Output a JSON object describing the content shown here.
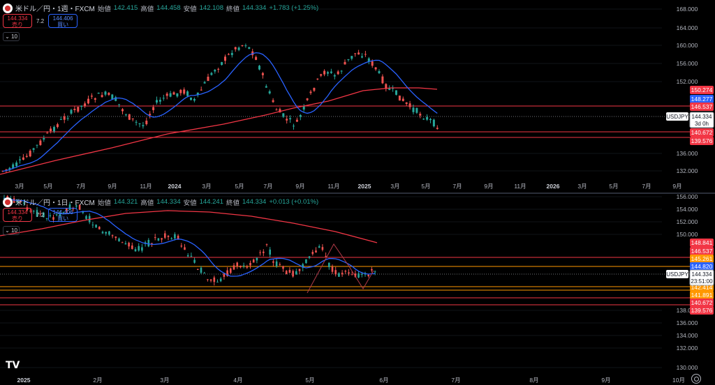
{
  "top": {
    "title": "米ドル／円・1週・FXCM",
    "legend": [
      {
        "k": "始値",
        "v": "142.415"
      },
      {
        "k": "高値",
        "v": "144.458"
      },
      {
        "k": "安値",
        "v": "142.108"
      },
      {
        "k": "終値",
        "v": "144.334"
      }
    ],
    "change": "+1.783 (+1.25%)",
    "sell_price": "144.334",
    "sell_label": "売り",
    "spread": "7.2",
    "buy_price": "144.406",
    "buy_label": "買い",
    "collapse": "10",
    "symbol_tag": "USDJPY",
    "price_tag": "144.334",
    "countdown": "3d 0h",
    "y_ticks": [
      "168.000",
      "164.000",
      "160.000",
      "156.000",
      "152.000",
      "136.000",
      "132.000"
    ],
    "badges": [
      {
        "text": "150.274",
        "color": "#f23645"
      },
      {
        "text": "148.277",
        "color": "#2962ff"
      },
      {
        "text": "146.537",
        "color": "#f23645"
      },
      {
        "text": "140.672",
        "color": "#f23645"
      },
      {
        "text": "139.576",
        "color": "#f23645"
      }
    ],
    "x_ticks": [
      {
        "t": "3月"
      },
      {
        "t": "5月"
      },
      {
        "t": "7月"
      },
      {
        "t": "9月"
      },
      {
        "t": "11月"
      },
      {
        "t": "2024",
        "major": true
      },
      {
        "t": "3月"
      },
      {
        "t": "5月"
      },
      {
        "t": "7月"
      },
      {
        "t": "9月"
      },
      {
        "t": "11月"
      },
      {
        "t": "2025",
        "major": true
      },
      {
        "t": "3月"
      },
      {
        "t": "5月"
      },
      {
        "t": "7月"
      },
      {
        "t": "9月"
      },
      {
        "t": "11月"
      },
      {
        "t": "2026",
        "major": true
      },
      {
        "t": "3月"
      },
      {
        "t": "5月"
      },
      {
        "t": "7月"
      },
      {
        "t": "9月"
      }
    ]
  },
  "bottom": {
    "title": "米ドル／円・1日・FXCM",
    "legend": [
      {
        "k": "始値",
        "v": "144.321"
      },
      {
        "k": "高値",
        "v": "144.334"
      },
      {
        "k": "安値",
        "v": "144.241"
      },
      {
        "k": "終値",
        "v": "144.334"
      }
    ],
    "change": "+0.013 (+0.01%)",
    "sell_price": "144.334",
    "sell_label": "売り",
    "spread": "7.2",
    "buy_price": "144.406",
    "buy_label": "買い",
    "collapse": "10",
    "symbol_tag": "USDJPY",
    "price_tag": "144.334",
    "countdown": "23:51:00",
    "y_ticks": [
      "156.000",
      "154.000",
      "152.000",
      "150.000",
      "138.000",
      "136.000",
      "134.000",
      "132.000",
      "130.000"
    ],
    "badges": [
      {
        "text": "148.841",
        "color": "#f23645"
      },
      {
        "text": "146.537",
        "color": "#f23645"
      },
      {
        "text": "145.261",
        "color": "#ff9800"
      },
      {
        "text": "144.820",
        "color": "#2962ff"
      },
      {
        "text": "142.414",
        "color": "#ff9800"
      },
      {
        "text": "141.891",
        "color": "#ff9800"
      },
      {
        "text": "140.672",
        "color": "#f23645"
      },
      {
        "text": "139.576",
        "color": "#f23645"
      }
    ],
    "x_ticks": [
      {
        "t": "2025",
        "major": true
      },
      {
        "t": "2月"
      },
      {
        "t": "3月"
      },
      {
        "t": "4月"
      },
      {
        "t": "5月"
      },
      {
        "t": "6月"
      },
      {
        "t": "7月"
      },
      {
        "t": "8月"
      },
      {
        "t": "9月"
      },
      {
        "t": "10月"
      }
    ]
  },
  "colors": {
    "up": "#26a69a",
    "down": "#ef5350",
    "ma_fast": "#2962ff",
    "ma_slow": "#f23645",
    "level_red": "#f23645",
    "level_orange": "#ff9800"
  },
  "logo": "TV"
}
